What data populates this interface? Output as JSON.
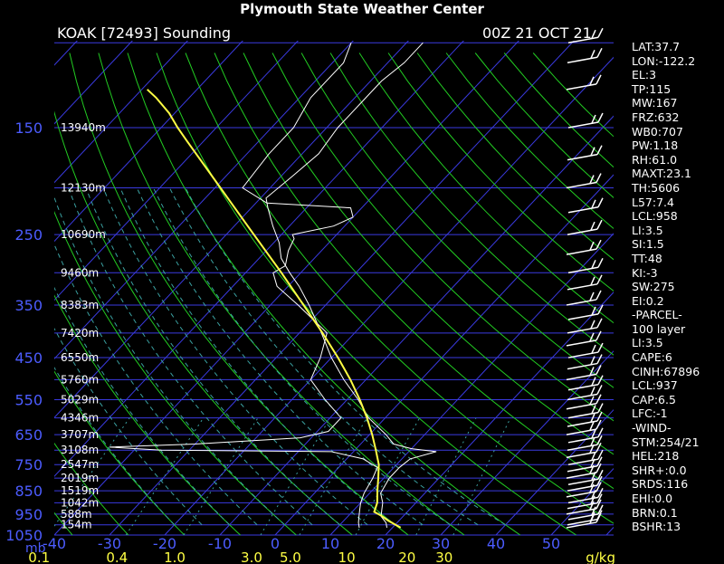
{
  "header": {
    "title": "Plymouth State Weather Center",
    "station": "KOAK [72493] Sounding",
    "time": "00Z 21 OCT 21"
  },
  "colors": {
    "background": "#000000",
    "isobar": "#3a3ae0",
    "isotherm": "#3a3ae0",
    "dry_adiabat": "#22cc22",
    "moist_adiabat": "#3aa0a0",
    "mixing_ratio": "#3aa0a0",
    "temperature": "#ffffff",
    "dewpoint": "#ffffff",
    "parcel": "#ffff44",
    "text": "#ffffff",
    "axis_label": "#4c5cff"
  },
  "params": [
    "LAT:37.7",
    "LON:-122.2",
    "EL:3",
    "TP:115",
    "MW:167",
    "FRZ:632",
    "WB0:707",
    "PW:1.18",
    "RH:61.0",
    "MAXT:23.1",
    "TH:5606",
    "L57:7.4",
    "LCL:958",
    "LI:3.5",
    "SI:1.5",
    "TT:48",
    "KI:-3",
    "SW:275",
    "EI:0.2",
    "-PARCEL-",
    "100 layer",
    "LI:3.5",
    "CAPE:6",
    "CINH:67896",
    "LCL:937",
    "CAP:6.5",
    "LFC:-1",
    "-WIND-",
    "STM:254/21",
    "HEL:218",
    "SHR+:0.0",
    "SRDS:116",
    "EHI:0.0",
    "BRN:0.1",
    "BSHR:13"
  ],
  "chart_data": {
    "type": "line",
    "chart_kind": "skew-T log-P sounding",
    "y_axis": {
      "unit_label": "mb",
      "pressure_levels": [
        150,
        250,
        350,
        450,
        550,
        650,
        750,
        850,
        950,
        1050
      ],
      "range_mb": [
        1050,
        100
      ],
      "scale": "log"
    },
    "x_axis": {
      "temperature_ticks_c": [
        -40,
        -30,
        -20,
        -10,
        0,
        10,
        20,
        30,
        40,
        50
      ],
      "mixing_ratio_labels": [
        "0.1",
        "0.4",
        "1.0",
        "3.0",
        "5.0",
        "10",
        "20",
        "30"
      ],
      "mixing_ratio_unit": "g/kg"
    },
    "height_labels": [
      {
        "p": 150,
        "text": "13940m"
      },
      {
        "p": 200,
        "text": "12130m"
      },
      {
        "p": 250,
        "text": "10690m"
      },
      {
        "p": 300,
        "text": "9460m"
      },
      {
        "p": 350,
        "text": "8383m"
      },
      {
        "p": 400,
        "text": "7420m"
      },
      {
        "p": 450,
        "text": "6550m"
      },
      {
        "p": 500,
        "text": "5760m"
      },
      {
        "p": 550,
        "text": "5029m"
      },
      {
        "p": 600,
        "text": "4346m"
      },
      {
        "p": 650,
        "text": "3707m"
      },
      {
        "p": 700,
        "text": "3108m"
      },
      {
        "p": 750,
        "text": "2547m"
      },
      {
        "p": 800,
        "text": "2019m"
      },
      {
        "p": 850,
        "text": "1519m"
      },
      {
        "p": 900,
        "text": "1042m"
      },
      {
        "p": 950,
        "text": "588m"
      },
      {
        "p": 1000,
        "text": "154m"
      }
    ],
    "series": [
      {
        "name": "temperature",
        "points": [
          [
            1014,
            19
          ],
          [
            990,
            18
          ],
          [
            960,
            16
          ],
          [
            930,
            15
          ],
          [
            900,
            14
          ],
          [
            860,
            12
          ],
          [
            800,
            11
          ],
          [
            760,
            11
          ],
          [
            730,
            11.5
          ],
          [
            705,
            15
          ],
          [
            695,
            10
          ],
          [
            680,
            6
          ],
          [
            650,
            3
          ],
          [
            600,
            -3
          ],
          [
            550,
            -8
          ],
          [
            500,
            -14
          ],
          [
            450,
            -20
          ],
          [
            400,
            -26
          ],
          [
            350,
            -33
          ],
          [
            320,
            -38
          ],
          [
            300,
            -42
          ],
          [
            280,
            -46
          ],
          [
            260,
            -49
          ],
          [
            240,
            -53
          ],
          [
            220,
            -57
          ],
          [
            210,
            -59
          ],
          [
            190,
            -58
          ],
          [
            170,
            -57
          ],
          [
            150,
            -58
          ],
          [
            130,
            -58
          ],
          [
            120,
            -58
          ],
          [
            110,
            -57
          ],
          [
            100,
            -57
          ]
        ]
      },
      {
        "name": "dewpoint",
        "points": [
          [
            1014,
            14
          ],
          [
            990,
            13
          ],
          [
            960,
            12
          ],
          [
            930,
            11
          ],
          [
            900,
            10
          ],
          [
            860,
            9
          ],
          [
            800,
            8
          ],
          [
            760,
            7
          ],
          [
            730,
            3
          ],
          [
            705,
            -4
          ],
          [
            700,
            -35
          ],
          [
            690,
            -45
          ],
          [
            680,
            -30
          ],
          [
            660,
            -12
          ],
          [
            640,
            -8
          ],
          [
            600,
            -8
          ],
          [
            550,
            -14
          ],
          [
            500,
            -20
          ],
          [
            450,
            -22
          ],
          [
            400,
            -25
          ],
          [
            350,
            -35
          ],
          [
            320,
            -42
          ],
          [
            300,
            -45
          ],
          [
            290,
            -44
          ],
          [
            270,
            -46
          ],
          [
            255,
            -47
          ],
          [
            250,
            -48
          ],
          [
            240,
            -42
          ],
          [
            230,
            -40
          ],
          [
            220,
            -42
          ],
          [
            215,
            -58
          ],
          [
            200,
            -65
          ],
          [
            170,
            -66
          ],
          [
            150,
            -66
          ],
          [
            130,
            -68
          ],
          [
            110,
            -68
          ],
          [
            100,
            -70
          ]
        ]
      },
      {
        "name": "parcel",
        "points": [
          [
            1014,
            21.5
          ],
          [
            980,
            18
          ],
          [
            958,
            16
          ],
          [
            940,
            14
          ],
          [
            900,
            13
          ],
          [
            850,
            11
          ],
          [
            800,
            9
          ],
          [
            750,
            6.8
          ],
          [
            700,
            3.8
          ],
          [
            650,
            0.5
          ],
          [
            600,
            -3.3
          ],
          [
            550,
            -7.7
          ],
          [
            500,
            -12.8
          ],
          [
            450,
            -18.8
          ],
          [
            400,
            -25.8
          ],
          [
            350,
            -34
          ],
          [
            300,
            -43.5
          ],
          [
            250,
            -55
          ],
          [
            200,
            -69
          ],
          [
            160,
            -83
          ],
          [
            150,
            -87
          ],
          [
            140,
            -91
          ],
          [
            130,
            -96
          ],
          [
            125,
            -99
          ]
        ]
      }
    ],
    "wind_barbs": {
      "description": "wind barbs along right edge, directions mostly westerly to southwesterly",
      "levels_mb": [
        1014,
        1000,
        975,
        950,
        925,
        900,
        875,
        850,
        825,
        800,
        775,
        750,
        725,
        700,
        675,
        650,
        625,
        600,
        575,
        550,
        525,
        500,
        475,
        450,
        425,
        400,
        375,
        350,
        325,
        300,
        275,
        250,
        225,
        200,
        175,
        150,
        125,
        110,
        100
      ]
    }
  }
}
